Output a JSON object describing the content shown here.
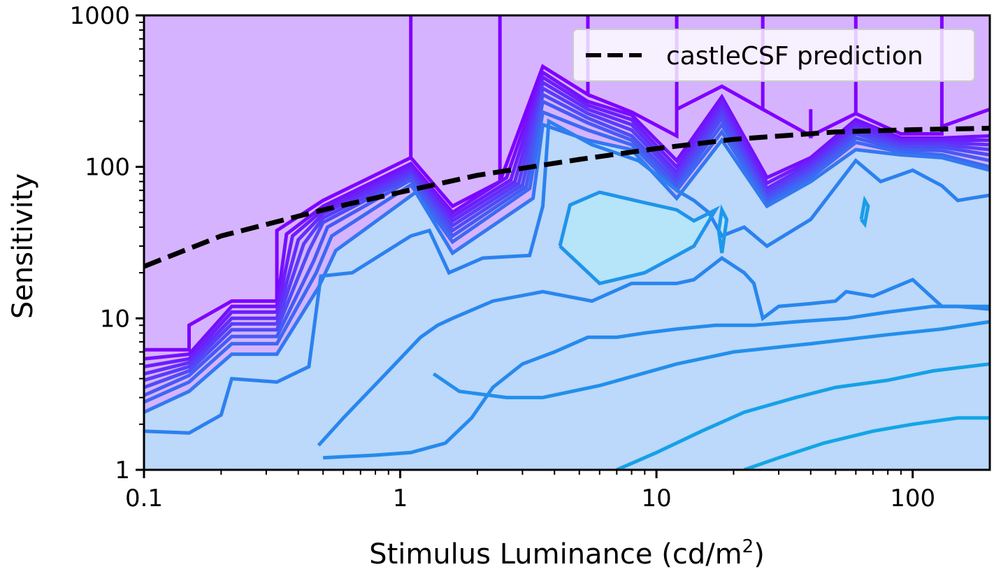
{
  "chart_data": {
    "type": "contour",
    "xlabel": "Stimulus Luminance (cd/m",
    "xlabel_sup": "2",
    "xlabel_close": ")",
    "ylabel": "Sensitivity",
    "x_scale": "log",
    "y_scale": "log",
    "xlim": [
      0.1,
      200
    ],
    "ylim": [
      1,
      1000
    ],
    "x_ticks": [
      0.1,
      1,
      10,
      100
    ],
    "x_tick_labels": [
      "0.1",
      "1",
      "10",
      "100"
    ],
    "y_ticks": [
      1,
      10,
      100,
      1000
    ],
    "y_tick_labels": [
      "1",
      "10",
      "100",
      "1000"
    ],
    "grid": false,
    "legend": {
      "position": "top-right",
      "entries": [
        "castleCSF prediction"
      ]
    },
    "colors": {
      "background_fill": "#d6b3ff",
      "inner_fill": "#bcd8fa",
      "peak_fill": "#b6e4f8",
      "contour_low": "#7f00ff",
      "contour_mid": "#2e7ff0",
      "contour_high": "#12a6e6",
      "prediction": "#000000"
    },
    "prediction": {
      "name": "castleCSF prediction",
      "style": "dashed",
      "x": [
        0.1,
        0.2,
        0.5,
        1,
        2,
        5,
        10,
        20,
        50,
        100,
        200
      ],
      "y": [
        22,
        35,
        52,
        68,
        88,
        112,
        132,
        152,
        170,
        176,
        180
      ]
    },
    "contours": [
      {
        "x": [
          0.1,
          0.15,
          0.15,
          0.22,
          0.22,
          0.33,
          0.33,
          0.5,
          1.1,
          1.1,
          1.1,
          1.6,
          2.45,
          2.45,
          2.45,
          3.6,
          5.4,
          5.4,
          5.4,
          8,
          12,
          12,
          12,
          18,
          26,
          26,
          26,
          40,
          40,
          40,
          60,
          60,
          60,
          90,
          130,
          130,
          130,
          200
        ],
        "y": [
          6.2,
          6.2,
          9,
          13,
          13,
          13,
          38,
          60,
          115,
          1000,
          115,
          55,
          80,
          1000,
          80,
          460,
          300,
          1000,
          300,
          230,
          160,
          1000,
          240,
          340,
          240,
          1000,
          240,
          160,
          240,
          160,
          225,
          1000,
          225,
          165,
          165,
          1000,
          185,
          240
        ]
      },
      {
        "x": [
          0.1,
          0.15,
          0.22,
          0.33,
          0.36,
          0.5,
          1.1,
          1.6,
          2.6,
          3.6,
          5.4,
          8,
          12,
          18,
          27,
          40,
          60,
          90,
          130,
          200
        ],
        "y": [
          5.4,
          5.8,
          12,
          12,
          36,
          55,
          105,
          50,
          85,
          420,
          270,
          220,
          110,
          290,
          85,
          115,
          205,
          155,
          155,
          160
        ]
      },
      {
        "x": [
          0.1,
          0.15,
          0.22,
          0.33,
          0.38,
          0.5,
          1.1,
          1.6,
          2.7,
          3.6,
          5.4,
          8,
          12,
          18,
          27,
          40,
          60,
          90,
          130,
          200
        ],
        "y": [
          4.8,
          5.4,
          11,
          11,
          35,
          52,
          100,
          47,
          82,
          390,
          255,
          205,
          100,
          270,
          78,
          110,
          195,
          150,
          150,
          150
        ]
      },
      {
        "x": [
          0.1,
          0.15,
          0.22,
          0.33,
          0.4,
          0.5,
          1.1,
          1.6,
          2.8,
          3.6,
          5.4,
          8,
          12,
          18,
          27,
          40,
          60,
          90,
          130,
          200
        ],
        "y": [
          4.3,
          5.1,
          10,
          10,
          33,
          49,
          95,
          44,
          80,
          360,
          240,
          190,
          92,
          250,
          72,
          105,
          185,
          145,
          145,
          140
        ]
      },
      {
        "x": [
          0.1,
          0.15,
          0.22,
          0.33,
          0.42,
          0.5,
          1.1,
          1.6,
          2.9,
          3.6,
          5.4,
          8,
          12,
          18,
          27,
          40,
          60,
          90,
          130,
          200
        ],
        "y": [
          3.9,
          4.8,
          9.2,
          9.2,
          31,
          46,
          90,
          41,
          78,
          330,
          225,
          175,
          86,
          230,
          68,
          100,
          175,
          140,
          140,
          130
        ]
      },
      {
        "x": [
          0.1,
          0.15,
          0.22,
          0.33,
          0.44,
          0.5,
          1.1,
          1.6,
          3.0,
          3.6,
          5.4,
          8,
          12,
          18,
          27,
          40,
          60,
          90,
          130,
          200
        ],
        "y": [
          3.5,
          4.5,
          8.4,
          8.4,
          28,
          43,
          86,
          38,
          76,
          300,
          210,
          160,
          80,
          210,
          64,
          95,
          165,
          135,
          135,
          120
        ]
      },
      {
        "x": [
          0.1,
          0.15,
          0.22,
          0.33,
          0.46,
          0.52,
          1.1,
          1.6,
          3.1,
          3.6,
          5.4,
          8,
          12,
          18,
          27,
          40,
          60,
          90,
          130,
          200
        ],
        "y": [
          3.1,
          4.2,
          7.6,
          7.6,
          24,
          40,
          82,
          35,
          74,
          270,
          195,
          150,
          75,
          190,
          61,
          90,
          155,
          130,
          128,
          110
        ]
      },
      {
        "x": [
          0.1,
          0.15,
          0.22,
          0.33,
          0.47,
          0.54,
          1.1,
          1.6,
          3.2,
          3.6,
          5.4,
          8,
          12,
          18,
          27,
          40,
          60,
          90,
          130,
          200
        ],
        "y": [
          2.8,
          3.8,
          6.8,
          6.8,
          20,
          35,
          76,
          32,
          72,
          230,
          175,
          140,
          70,
          170,
          58,
          85,
          145,
          125,
          120,
          100
        ]
      },
      {
        "x": [
          0.1,
          0.15,
          0.22,
          0.33,
          0.48,
          0.56,
          1.15,
          1.6,
          3.3,
          3.6,
          5.4,
          8,
          12,
          18,
          27,
          40,
          60,
          90,
          130,
          200
        ],
        "y": [
          2.4,
          3.3,
          5.8,
          5.8,
          16,
          28,
          68,
          27,
          62,
          190,
          150,
          130,
          62,
          150,
          55,
          80,
          130,
          120,
          115,
          95
        ]
      },
      {
        "x": [
          0.1,
          0.15,
          0.2,
          0.22,
          0.33,
          0.44,
          0.49,
          0.65,
          1.1,
          1.3,
          1.55,
          2.1,
          3.2,
          3.6,
          3.8,
          5.6,
          8.5,
          12,
          14,
          16,
          18,
          22,
          27,
          40,
          60,
          75,
          100,
          130,
          150,
          200
        ],
        "y": [
          1.8,
          1.75,
          2.3,
          4,
          3.8,
          4.8,
          19,
          20,
          35,
          38,
          20,
          25,
          26,
          55,
          200,
          140,
          110,
          70,
          60,
          50,
          35,
          40,
          30,
          45,
          110,
          80,
          95,
          75,
          60,
          65
        ]
      },
      {
        "x": [
          0.48,
          0.6,
          0.9,
          1.2,
          1.4,
          1.6,
          2.3,
          3.6,
          5.6,
          8,
          12,
          14,
          18,
          22,
          24,
          26,
          30,
          40,
          50,
          55,
          70,
          100,
          130,
          150,
          200
        ],
        "y": [
          1.45,
          2.2,
          4.5,
          7.5,
          9,
          10,
          13,
          15,
          13,
          17,
          17,
          18,
          25,
          20,
          17,
          10,
          12,
          12.5,
          13,
          15,
          14,
          18,
          12,
          12,
          11.5
        ]
      },
      {
        "x": [
          0.5,
          0.6,
          0.8,
          1.1,
          1.5,
          1.9,
          2.3,
          3.0,
          4.0,
          5.4,
          7.0,
          9.0,
          12,
          17,
          24,
          35,
          55,
          80,
          120,
          200
        ],
        "y": [
          1.2,
          1.22,
          1.25,
          1.3,
          1.5,
          2.2,
          3.5,
          5,
          6,
          7.5,
          7.5,
          8,
          8.5,
          9,
          9,
          9.5,
          10,
          11,
          12,
          12
        ]
      },
      {
        "x": [
          1.35,
          1.7,
          2.6,
          3.6,
          6,
          12,
          20,
          40,
          80,
          130,
          200
        ],
        "y": [
          4.3,
          3.3,
          3.0,
          3.0,
          3.6,
          5.0,
          6.0,
          6.8,
          7.8,
          8.5,
          9.5
        ]
      },
      {
        "x": [
          4.2,
          4.6,
          6,
          9,
          12,
          14,
          17,
          14,
          12,
          9,
          6,
          4.2
        ],
        "y": [
          30,
          56,
          68,
          58,
          52,
          44,
          52,
          30,
          26,
          20,
          17,
          30
        ]
      },
      {
        "x": [
          17.5,
          18,
          18.8,
          18,
          17.5
        ],
        "y": [
          38,
          52,
          45,
          27,
          38
        ]
      },
      {
        "x": [
          63,
          65,
          67,
          65,
          63
        ],
        "y": [
          45,
          60,
          55,
          42,
          45
        ]
      },
      {
        "x": [
          7,
          10,
          15,
          22,
          35,
          50,
          80,
          120,
          200
        ],
        "y": [
          1,
          1.3,
          1.8,
          2.4,
          3.0,
          3.5,
          3.9,
          4.5,
          5.0
        ]
      },
      {
        "x": [
          22,
          30,
          45,
          70,
          100,
          150,
          200
        ],
        "y": [
          1,
          1.2,
          1.5,
          1.8,
          2.0,
          2.2,
          2.2
        ]
      }
    ]
  }
}
